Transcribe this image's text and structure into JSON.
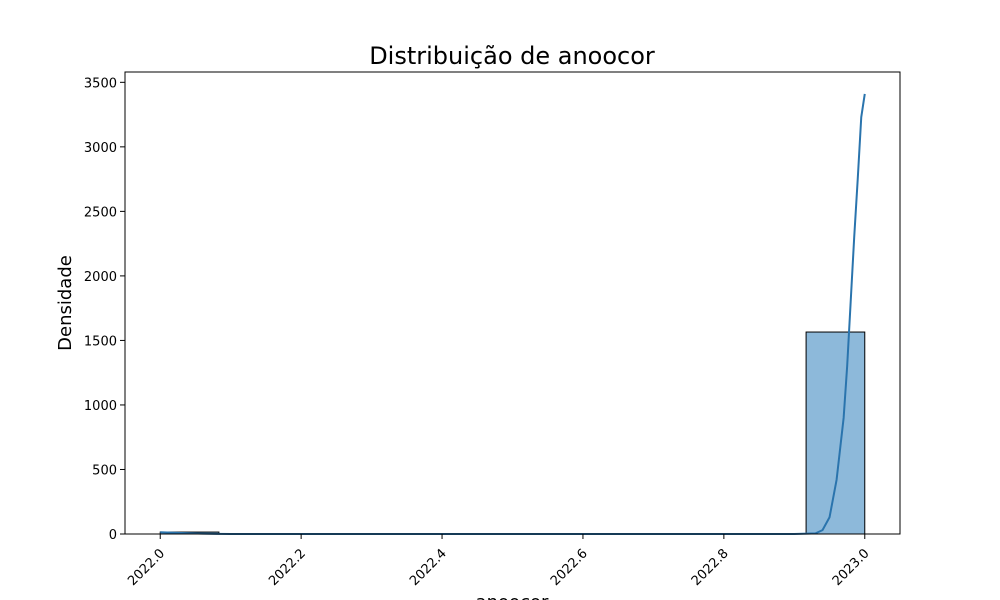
{
  "chart_data": {
    "type": "bar",
    "title": "Distribuição de anoocor",
    "xlabel": "anoocor",
    "ylabel": "Densidade",
    "xlim": [
      1921.95,
      2023.05
    ],
    "ylim": [
      0,
      3580
    ],
    "x_ticks": [
      2022.0,
      2022.2,
      2022.4,
      2022.6,
      2022.8,
      2023.0
    ],
    "x_tick_labels": [
      "2022.0",
      "2022.2",
      "2022.4",
      "2022.6",
      "2022.8",
      "2023.0"
    ],
    "y_ticks": [
      0,
      500,
      1000,
      1500,
      2000,
      2500,
      3000,
      3500
    ],
    "y_tick_labels": [
      "0",
      "500",
      "1000",
      "1500",
      "2000",
      "2500",
      "3000",
      "3500"
    ],
    "grid": false,
    "histogram": {
      "bins": [
        {
          "x0": 2022.0,
          "x1": 2022.0833,
          "value": 15
        },
        {
          "x0": 2022.9167,
          "x1": 2023.0,
          "value": 1565
        }
      ],
      "color": "#8db9da",
      "edge_color": "#000000"
    },
    "kde": {
      "color": "#2a74ad",
      "x": [
        2022.0,
        2022.02,
        2022.04,
        2022.06,
        2022.08,
        2022.1,
        2022.2,
        2022.4,
        2022.6,
        2022.8,
        2022.9,
        2022.93,
        2022.94,
        2022.95,
        2022.96,
        2022.97,
        2022.975,
        2022.98,
        2022.985,
        2022.99,
        2022.995,
        2023.0
      ],
      "y": [
        14,
        10,
        6,
        3,
        1,
        0,
        0,
        0,
        0,
        0,
        0,
        5,
        30,
        130,
        420,
        900,
        1300,
        1800,
        2300,
        2750,
        3230,
        3410
      ]
    }
  }
}
